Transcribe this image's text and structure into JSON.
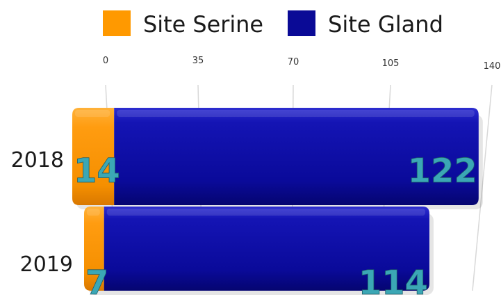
{
  "chart_data": {
    "type": "bar",
    "orientation": "horizontal",
    "stacked": true,
    "categories": [
      "2018",
      "2019"
    ],
    "series": [
      {
        "name": "Site Serine",
        "values": [
          14,
          7
        ],
        "color": "#FF9900"
      },
      {
        "name": "Site Gland",
        "values": [
          122,
          114
        ],
        "color": "#0A0A96"
      }
    ],
    "xlim": [
      0,
      140
    ],
    "ticks": [
      "0",
      "35",
      "70",
      "105",
      "140"
    ],
    "grid": true,
    "legend": "top",
    "data_label_color": "#3BA7B5"
  }
}
